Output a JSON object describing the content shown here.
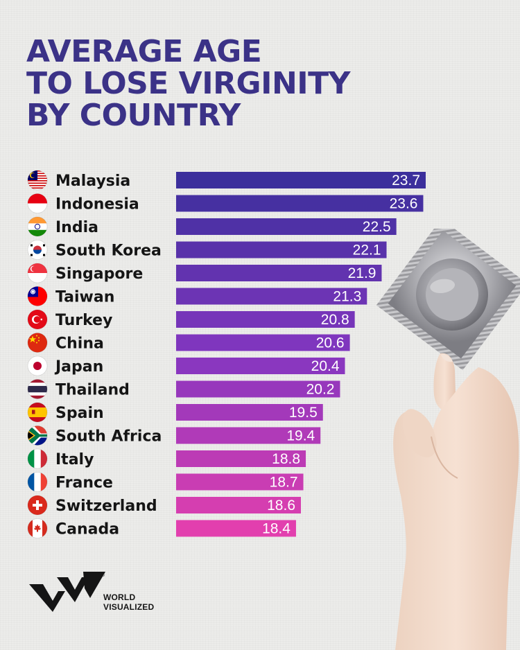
{
  "title_lines": [
    "AVERAGE AGE",
    "TO LOSE VIRGINITY",
    "BY COUNTRY"
  ],
  "colors": {
    "title": "#3b3287",
    "bar_top": "#3c2f9c",
    "bar_mid": "#8436c0",
    "bar_bottom": "#e23fae",
    "label": "#151515",
    "value": "#ffffff"
  },
  "chart_data": {
    "type": "bar",
    "orientation": "horizontal",
    "title": "AVERAGE AGE TO LOSE VIRGINITY BY COUNTRY",
    "categories": [
      "Malaysia",
      "Indonesia",
      "India",
      "South Korea",
      "Singapore",
      "Taiwan",
      "Turkey",
      "China",
      "Japan",
      "Thailand",
      "Spain",
      "South Africa",
      "Italy",
      "France",
      "Switzerland",
      "Canada"
    ],
    "values": [
      23.7,
      23.6,
      22.5,
      22.1,
      21.9,
      21.3,
      20.8,
      20.6,
      20.4,
      20.2,
      19.5,
      19.4,
      18.8,
      18.7,
      18.6,
      18.4
    ],
    "value_labels": [
      "23.7",
      "23.6",
      "22.5",
      "22.1",
      "21.9",
      "21.3",
      "20.8",
      "20.6",
      "20.4",
      "20.2",
      "19.5",
      "19.4",
      "18.8",
      "18.7",
      "18.6",
      "18.4"
    ],
    "icons": [
      "malaysia-flag-icon",
      "indonesia-flag-icon",
      "india-flag-icon",
      "south-korea-flag-icon",
      "singapore-flag-icon",
      "taiwan-flag-icon",
      "turkey-flag-icon",
      "china-flag-icon",
      "japan-flag-icon",
      "thailand-flag-icon",
      "spain-flag-icon",
      "south-africa-flag-icon",
      "italy-flag-icon",
      "france-flag-icon",
      "switzerland-flag-icon",
      "canada-flag-icon"
    ],
    "xlim": [
      13.5,
      23.7
    ],
    "grid": false,
    "legend": "none"
  },
  "illustration": {
    "name": "hand-holding-condom-packet"
  },
  "logo": {
    "line1": "WORLD",
    "line2": "VISUALIZED",
    "mark": "wv-logo-icon",
    "registered": "®"
  }
}
